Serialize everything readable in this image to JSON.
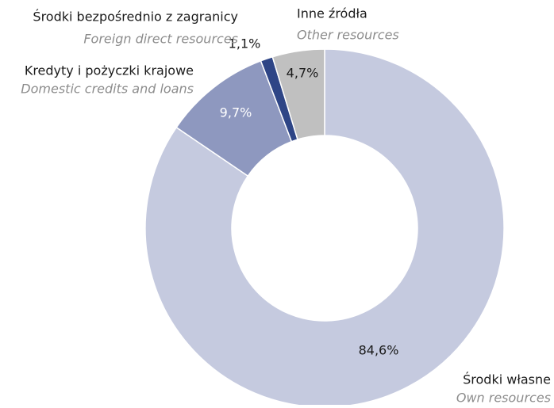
{
  "chart_data": {
    "type": "donut",
    "categories": [
      "Środki własne",
      "Kredyty i pożyczki krajowe",
      "Środki bezpośrednio z zagranicy",
      "Inne źródła"
    ],
    "categories_en": [
      "Own resources",
      "Domestic credits and loans",
      "Foreign direct resources",
      "Other resources"
    ],
    "values": [
      84.6,
      9.7,
      1.1,
      4.7
    ],
    "value_labels": [
      "84,6%",
      "9,7%",
      "1,1%",
      "4,7%"
    ],
    "colors": [
      "#c5cadf",
      "#8e98bf",
      "#2e4586",
      "#c0c0c0"
    ]
  }
}
